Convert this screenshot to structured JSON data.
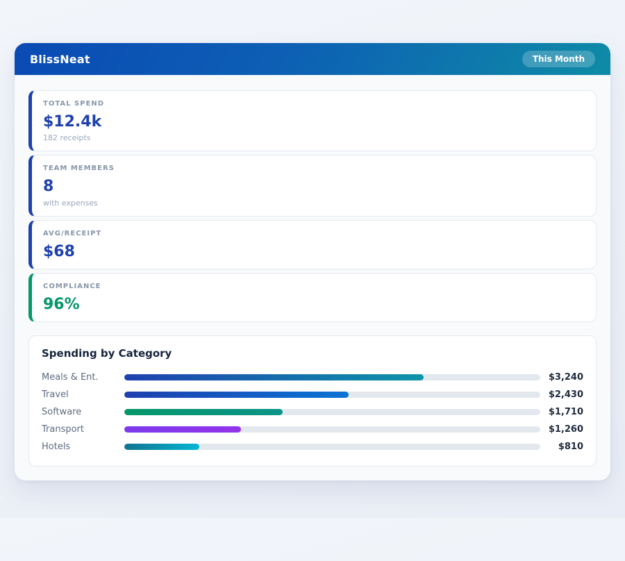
{
  "header": {
    "app_title": "BlissNeat",
    "period_badge": "This Month"
  },
  "stats": [
    {
      "label": "TOTAL SPEND",
      "value": "$12.4k",
      "sub": "182 receipts",
      "accent": "#1e40af"
    },
    {
      "label": "TEAM MEMBERS",
      "value": "8",
      "sub": "with expenses",
      "accent": "#1e40af"
    },
    {
      "label": "AVG/RECEIPT",
      "value": "$68",
      "sub": "",
      "accent": "#1e40af"
    },
    {
      "label": "COMPLIANCE",
      "value": "96%",
      "sub": "",
      "accent": "#059669"
    }
  ],
  "chart_data": {
    "type": "bar",
    "orientation": "horizontal",
    "title": "Spending by Category",
    "categories": [
      "Meals & Ent.",
      "Travel",
      "Software",
      "Transport",
      "Hotels"
    ],
    "values": [
      3240,
      2430,
      1710,
      1260,
      810
    ],
    "value_labels": [
      "$3,240",
      "$2,430",
      "$1,710",
      "$1,260",
      "$810"
    ],
    "axis_max": 4500,
    "grid": false,
    "legend": false,
    "track_color": "#e3e8ef",
    "bars": [
      {
        "percent": 72,
        "color_start": "#1e40af",
        "color_end": "#0d95a8"
      },
      {
        "percent": 54,
        "color_start": "#1e40af",
        "color_end": "#0b74d4"
      },
      {
        "percent": 38,
        "color_start": "#059669",
        "color_end": "#0d9488"
      },
      {
        "percent": 28,
        "color_start": "#7c3aed",
        "color_end": "#9333ea"
      },
      {
        "percent": 18,
        "color_start": "#0e7490",
        "color_end": "#06b6d4"
      }
    ]
  },
  "theme": {
    "header_gradient_start": "#0a4ab4",
    "header_gradient_end": "#0e8ba6",
    "page_background": "#edf1f7",
    "panel_background": "#f8fafc",
    "card_background": "#ffffff",
    "card_border": "#e5e9f0",
    "accent_blue": "#1e40af",
    "accent_green": "#059669"
  }
}
